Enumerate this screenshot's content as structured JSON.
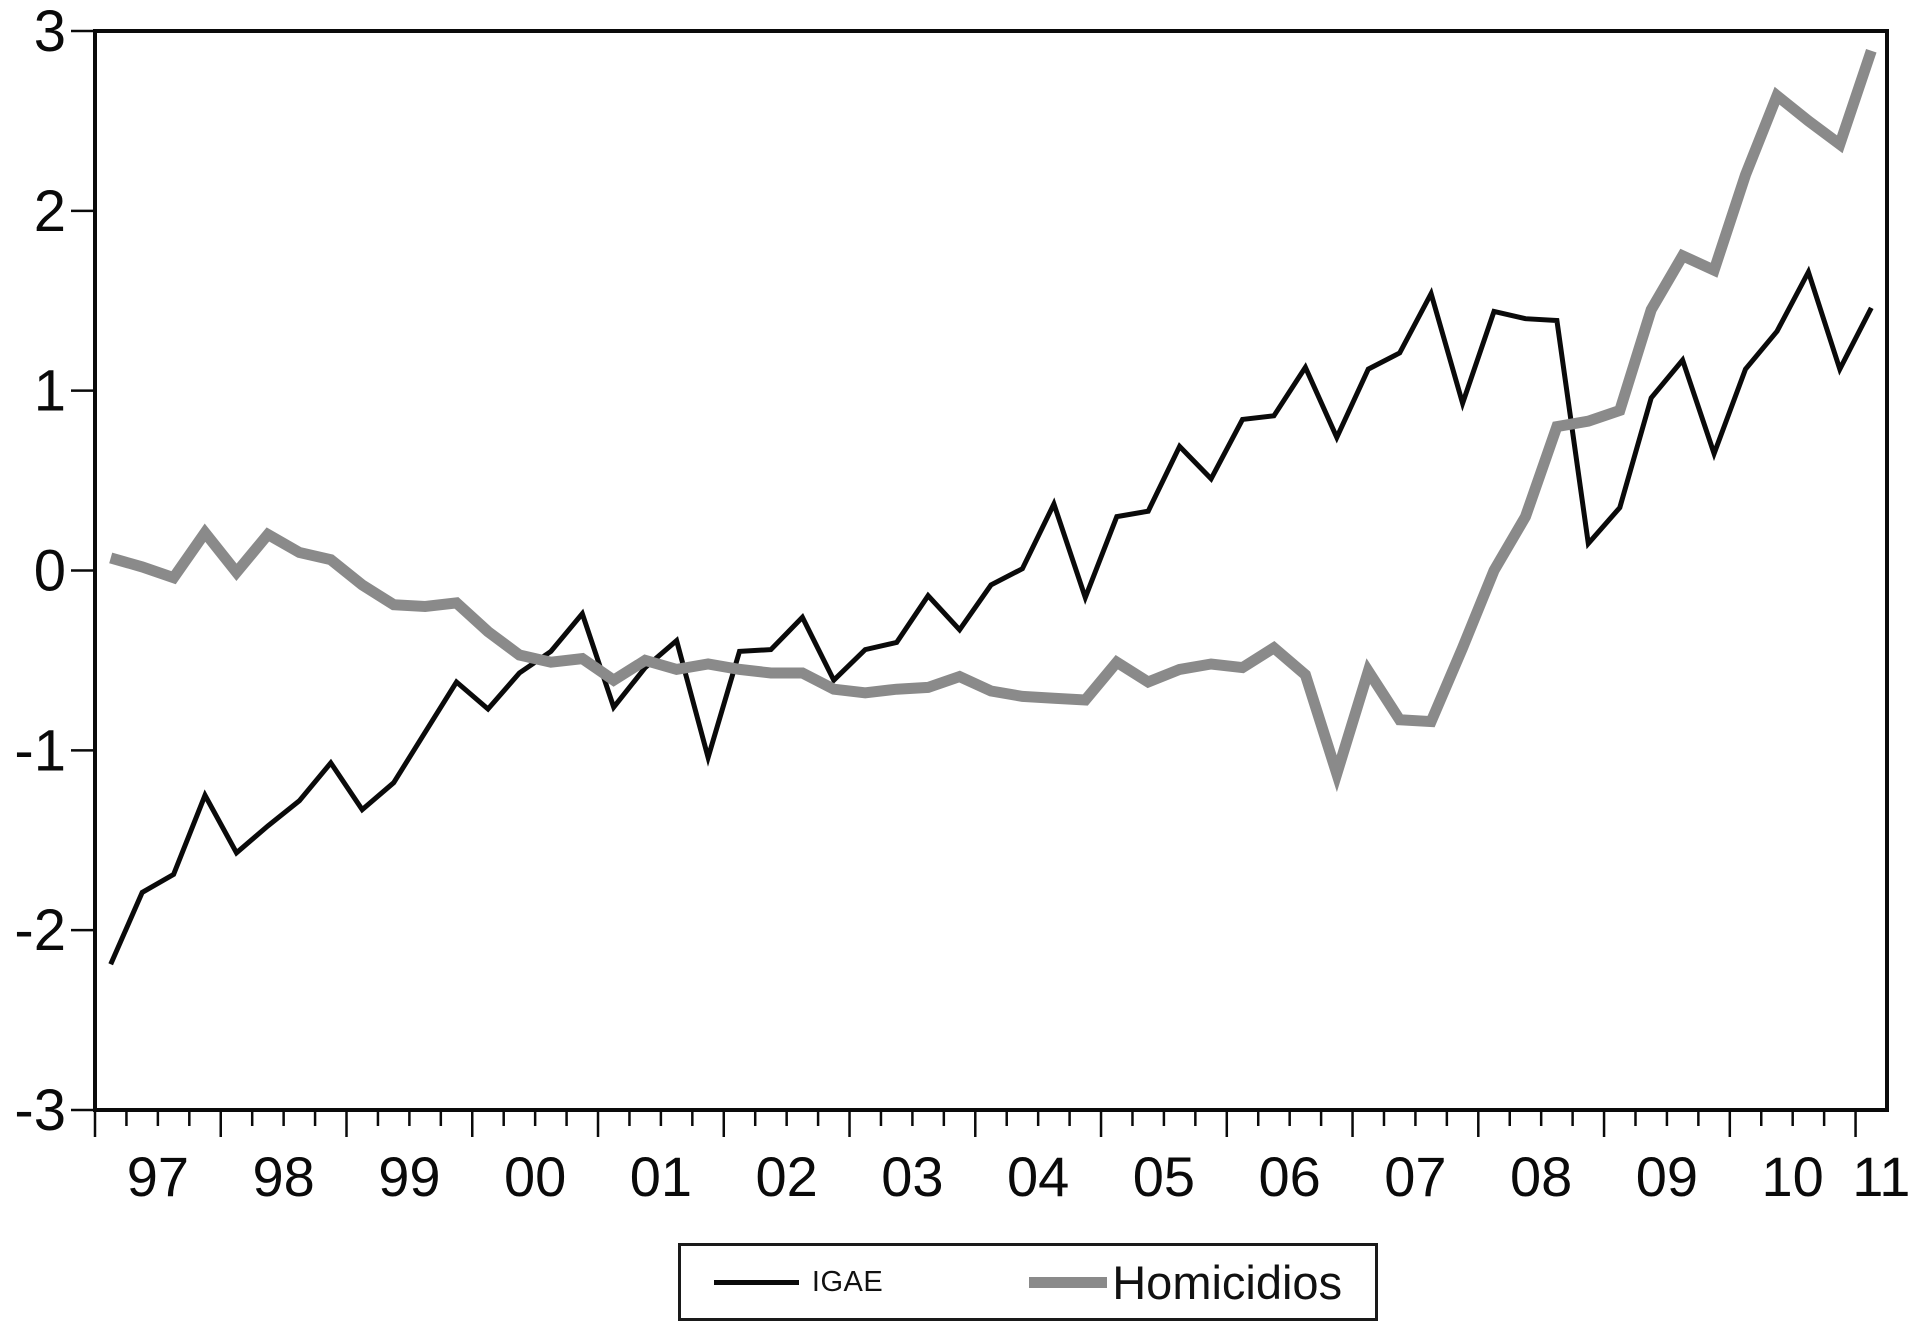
{
  "chart_data": {
    "type": "line",
    "title": "",
    "x_axis": {
      "unit": "quarterly",
      "start_period": "1997Q1",
      "end_period": "2011Q1",
      "domain_years": [
        1997.0,
        2011.25
      ],
      "year_tick_years": [
        1997,
        1998,
        1999,
        2000,
        2001,
        2002,
        2003,
        2004,
        2005,
        2006,
        2007,
        2008,
        2009,
        2010,
        2011
      ],
      "tick_labels": [
        "97",
        "98",
        "99",
        "00",
        "01",
        "02",
        "03",
        "04",
        "05",
        "06",
        "07",
        "08",
        "09",
        "10",
        "11"
      ],
      "minor_ticks": "quarterly"
    },
    "y_axis": {
      "range": [
        -3,
        3
      ],
      "ticks": [
        3,
        2,
        1,
        0,
        -1,
        -2,
        -3
      ],
      "tick_labels": [
        "3",
        "2",
        "1",
        "0",
        "-1",
        "-2",
        "-3"
      ]
    },
    "grid": "off",
    "legend_position": "bottom-center",
    "series": [
      {
        "name": "IGAE",
        "color": "#0a0a0a",
        "stroke_width": 5,
        "values": [
          -2.19,
          -1.79,
          -1.69,
          -1.25,
          -1.57,
          -1.42,
          -1.28,
          -1.07,
          -1.33,
          -1.18,
          -0.9,
          -0.62,
          -0.77,
          -0.57,
          -0.45,
          -0.24,
          -0.76,
          -0.54,
          -0.39,
          -1.04,
          -0.45,
          -0.44,
          -0.26,
          -0.61,
          -0.44,
          -0.4,
          -0.14,
          -0.33,
          -0.08,
          0.01,
          0.37,
          -0.15,
          0.3,
          0.33,
          0.69,
          0.51,
          0.84,
          0.86,
          1.13,
          0.74,
          1.12,
          1.21,
          1.54,
          0.93,
          1.44,
          1.4,
          1.39,
          0.15,
          0.35,
          0.96,
          1.17,
          0.65,
          1.12,
          1.33,
          1.66,
          1.12,
          1.46
        ]
      },
      {
        "name": "Homicidios",
        "color": "#8a8a8a",
        "stroke_width": 11,
        "values": [
          0.07,
          0.02,
          -0.04,
          0.21,
          -0.01,
          0.2,
          0.1,
          0.06,
          -0.08,
          -0.19,
          -0.2,
          -0.18,
          -0.34,
          -0.47,
          -0.51,
          -0.49,
          -0.61,
          -0.5,
          -0.55,
          -0.52,
          -0.55,
          -0.57,
          -0.57,
          -0.66,
          -0.68,
          -0.66,
          -0.65,
          -0.59,
          -0.67,
          -0.7,
          -0.71,
          -0.72,
          -0.51,
          -0.62,
          -0.55,
          -0.52,
          -0.54,
          -0.43,
          -0.58,
          -1.13,
          -0.56,
          -0.83,
          -0.84,
          -0.43,
          0.0,
          0.3,
          0.8,
          0.83,
          0.89,
          1.45,
          1.75,
          1.67,
          2.2,
          2.64,
          2.5,
          2.37,
          2.89
        ]
      }
    ]
  },
  "legend": {
    "igae_label": "IGAE",
    "homicidios_label": "Homicidios"
  }
}
